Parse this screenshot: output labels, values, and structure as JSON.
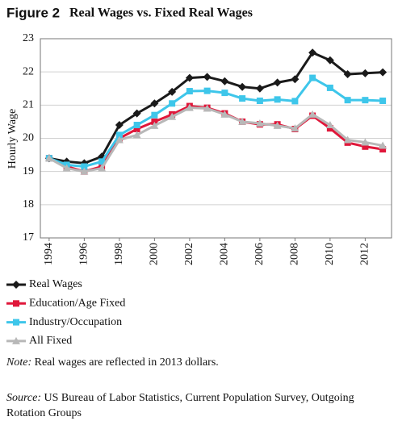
{
  "chart_data": {
    "type": "line",
    "title_prefix": "Figure 2",
    "title": "Real Wages vs. Fixed Real Wages",
    "y_label": "Hourly Wage",
    "x": [
      1994,
      1995,
      1996,
      1997,
      1998,
      1999,
      2000,
      2001,
      2002,
      2003,
      2004,
      2005,
      2006,
      2007,
      2008,
      2009,
      2010,
      2011,
      2012,
      2013
    ],
    "xlim": [
      1993.5,
      2013.5
    ],
    "xticks": [
      1994,
      1996,
      1998,
      2000,
      2002,
      2004,
      2006,
      2008,
      2010,
      2012
    ],
    "ylim": [
      17,
      23
    ],
    "yticks": [
      17,
      18,
      19,
      20,
      21,
      22,
      23
    ],
    "grid": true,
    "series": [
      {
        "name": "Real Wages",
        "color": "#1a1a1a",
        "marker": "diamond",
        "values": [
          19.4,
          19.3,
          19.25,
          19.45,
          20.4,
          20.75,
          21.05,
          21.4,
          21.82,
          21.85,
          21.72,
          21.55,
          21.5,
          21.68,
          21.78,
          22.58,
          22.35,
          21.93,
          21.96,
          21.99
        ]
      },
      {
        "name": "Education/Age Fixed",
        "color": "#e0173a",
        "marker": "square",
        "values": [
          19.4,
          19.15,
          19.0,
          19.15,
          20.0,
          20.28,
          20.5,
          20.72,
          20.97,
          20.92,
          20.75,
          20.5,
          20.42,
          20.42,
          20.28,
          20.68,
          20.3,
          19.87,
          19.75,
          19.67
        ]
      },
      {
        "name": "Industry/Occupation",
        "color": "#3ec6ea",
        "marker": "square",
        "values": [
          19.4,
          19.2,
          19.15,
          19.3,
          20.1,
          20.4,
          20.7,
          21.05,
          21.42,
          21.43,
          21.37,
          21.2,
          21.13,
          21.17,
          21.12,
          21.82,
          21.52,
          21.15,
          21.15,
          21.13
        ]
      },
      {
        "name": "All Fixed",
        "color": "#b8b8b8",
        "marker": "triangle",
        "values": [
          19.4,
          19.1,
          19.0,
          19.1,
          19.95,
          20.1,
          20.38,
          20.65,
          20.92,
          20.9,
          20.72,
          20.5,
          20.45,
          20.38,
          20.3,
          20.72,
          20.4,
          19.95,
          19.88,
          19.78
        ]
      }
    ],
    "note": {
      "label": "Note:",
      "text": "Real wages are reflected in 2013 dollars."
    },
    "source": {
      "label": "Source:",
      "text": "US Bureau of Labor Statistics, Current Population Survey, Outgoing Rotation Groups"
    }
  }
}
